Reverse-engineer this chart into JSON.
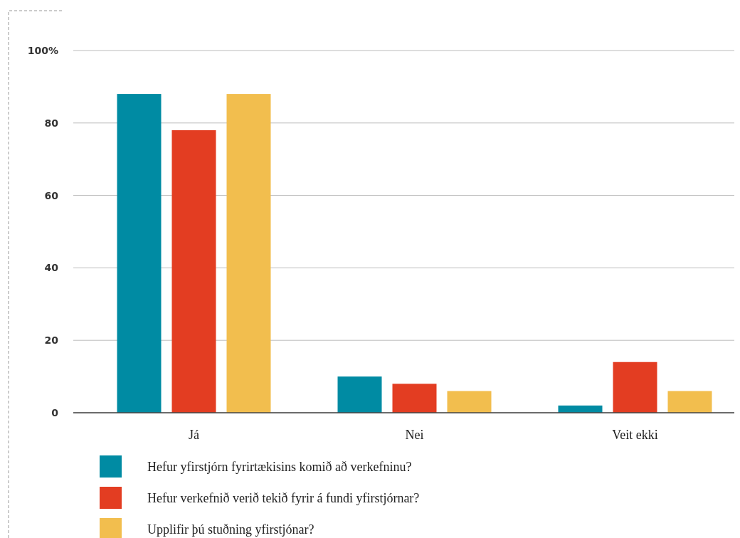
{
  "chart_data": {
    "type": "bar",
    "categories": [
      "Já",
      "Nei",
      "Veit ekki"
    ],
    "series": [
      {
        "name": "Hefur yfirstjórn fyrirtækisins komið að verkefninu?",
        "color": "#008ba3",
        "values": [
          88,
          10,
          2
        ]
      },
      {
        "name": "Hefur verkefnið verið tekið fyrir á fundi yfirstjórnar?",
        "color": "#e33d22",
        "values": [
          78,
          8,
          14
        ]
      },
      {
        "name": "Upplifir þú stuðning yfirstjónar?",
        "color": "#f2be4e",
        "values": [
          88,
          6,
          6
        ]
      }
    ],
    "ylim": [
      0,
      100
    ],
    "yticks": [
      0,
      20,
      40,
      60,
      80,
      {
        "value": 100,
        "label": "100%"
      }
    ],
    "grid": "y",
    "legend": "bottom"
  }
}
